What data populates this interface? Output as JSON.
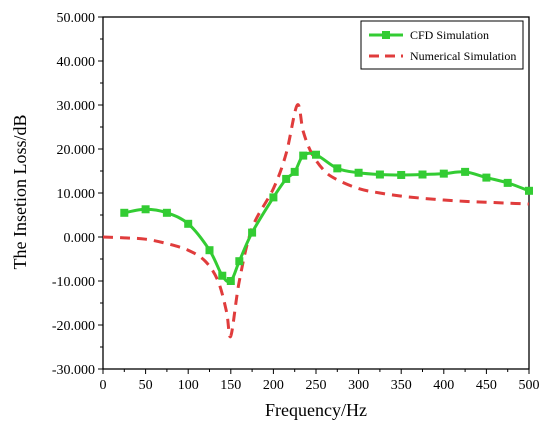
{
  "chart_data": {
    "type": "line",
    "xlabel": "Frequency/Hz",
    "ylabel": "The Insetion Loss/dB",
    "xlim": [
      0,
      500
    ],
    "ylim": [
      -30,
      50
    ],
    "x_ticks": [
      0,
      50,
      100,
      150,
      200,
      250,
      300,
      350,
      400,
      450,
      500
    ],
    "x_tick_labels": [
      "0",
      "50",
      "100",
      "150",
      "200",
      "250",
      "300",
      "350",
      "400",
      "450",
      "500"
    ],
    "y_ticks": [
      -30,
      -20,
      -10,
      0,
      10,
      20,
      30,
      40,
      50
    ],
    "y_tick_labels": [
      "-30.000",
      "-20.000",
      "-10.000",
      "0.000",
      "10.000",
      "20.000",
      "30.000",
      "40.000",
      "50.000"
    ],
    "grid": false,
    "legend_position": "top-right",
    "series": [
      {
        "name": "CFD Simulation",
        "color": "#33cc33",
        "style": "solid-square-markers",
        "x": [
          25,
          50,
          75,
          100,
          125,
          140,
          150,
          160,
          175,
          200,
          215,
          225,
          235,
          250,
          275,
          300,
          325,
          350,
          375,
          400,
          425,
          450,
          475,
          500
        ],
        "y": [
          5.5,
          6.3,
          5.5,
          3.0,
          -3.0,
          -8.8,
          -10.0,
          -5.5,
          1.0,
          9.0,
          13.2,
          14.8,
          18.5,
          18.7,
          15.6,
          14.6,
          14.2,
          14.1,
          14.2,
          14.4,
          14.8,
          13.5,
          12.3,
          10.5
        ]
      },
      {
        "name": "Numerical Simulation",
        "color": "#e03c3c",
        "style": "dashed",
        "x": [
          0,
          25,
          50,
          75,
          100,
          120,
          135,
          145,
          150,
          160,
          175,
          200,
          215,
          228,
          235,
          245,
          260,
          275,
          300,
          325,
          350,
          375,
          400,
          425,
          450,
          475,
          500
        ],
        "y": [
          0.0,
          -0.2,
          -0.5,
          -1.5,
          -3.0,
          -5.5,
          -10.0,
          -17.0,
          -22.5,
          -10.0,
          2.0,
          11.0,
          19.0,
          30.0,
          24.0,
          19.0,
          15.0,
          13.0,
          11.0,
          10.0,
          9.3,
          8.8,
          8.4,
          8.1,
          7.9,
          7.7,
          7.5
        ]
      }
    ]
  }
}
